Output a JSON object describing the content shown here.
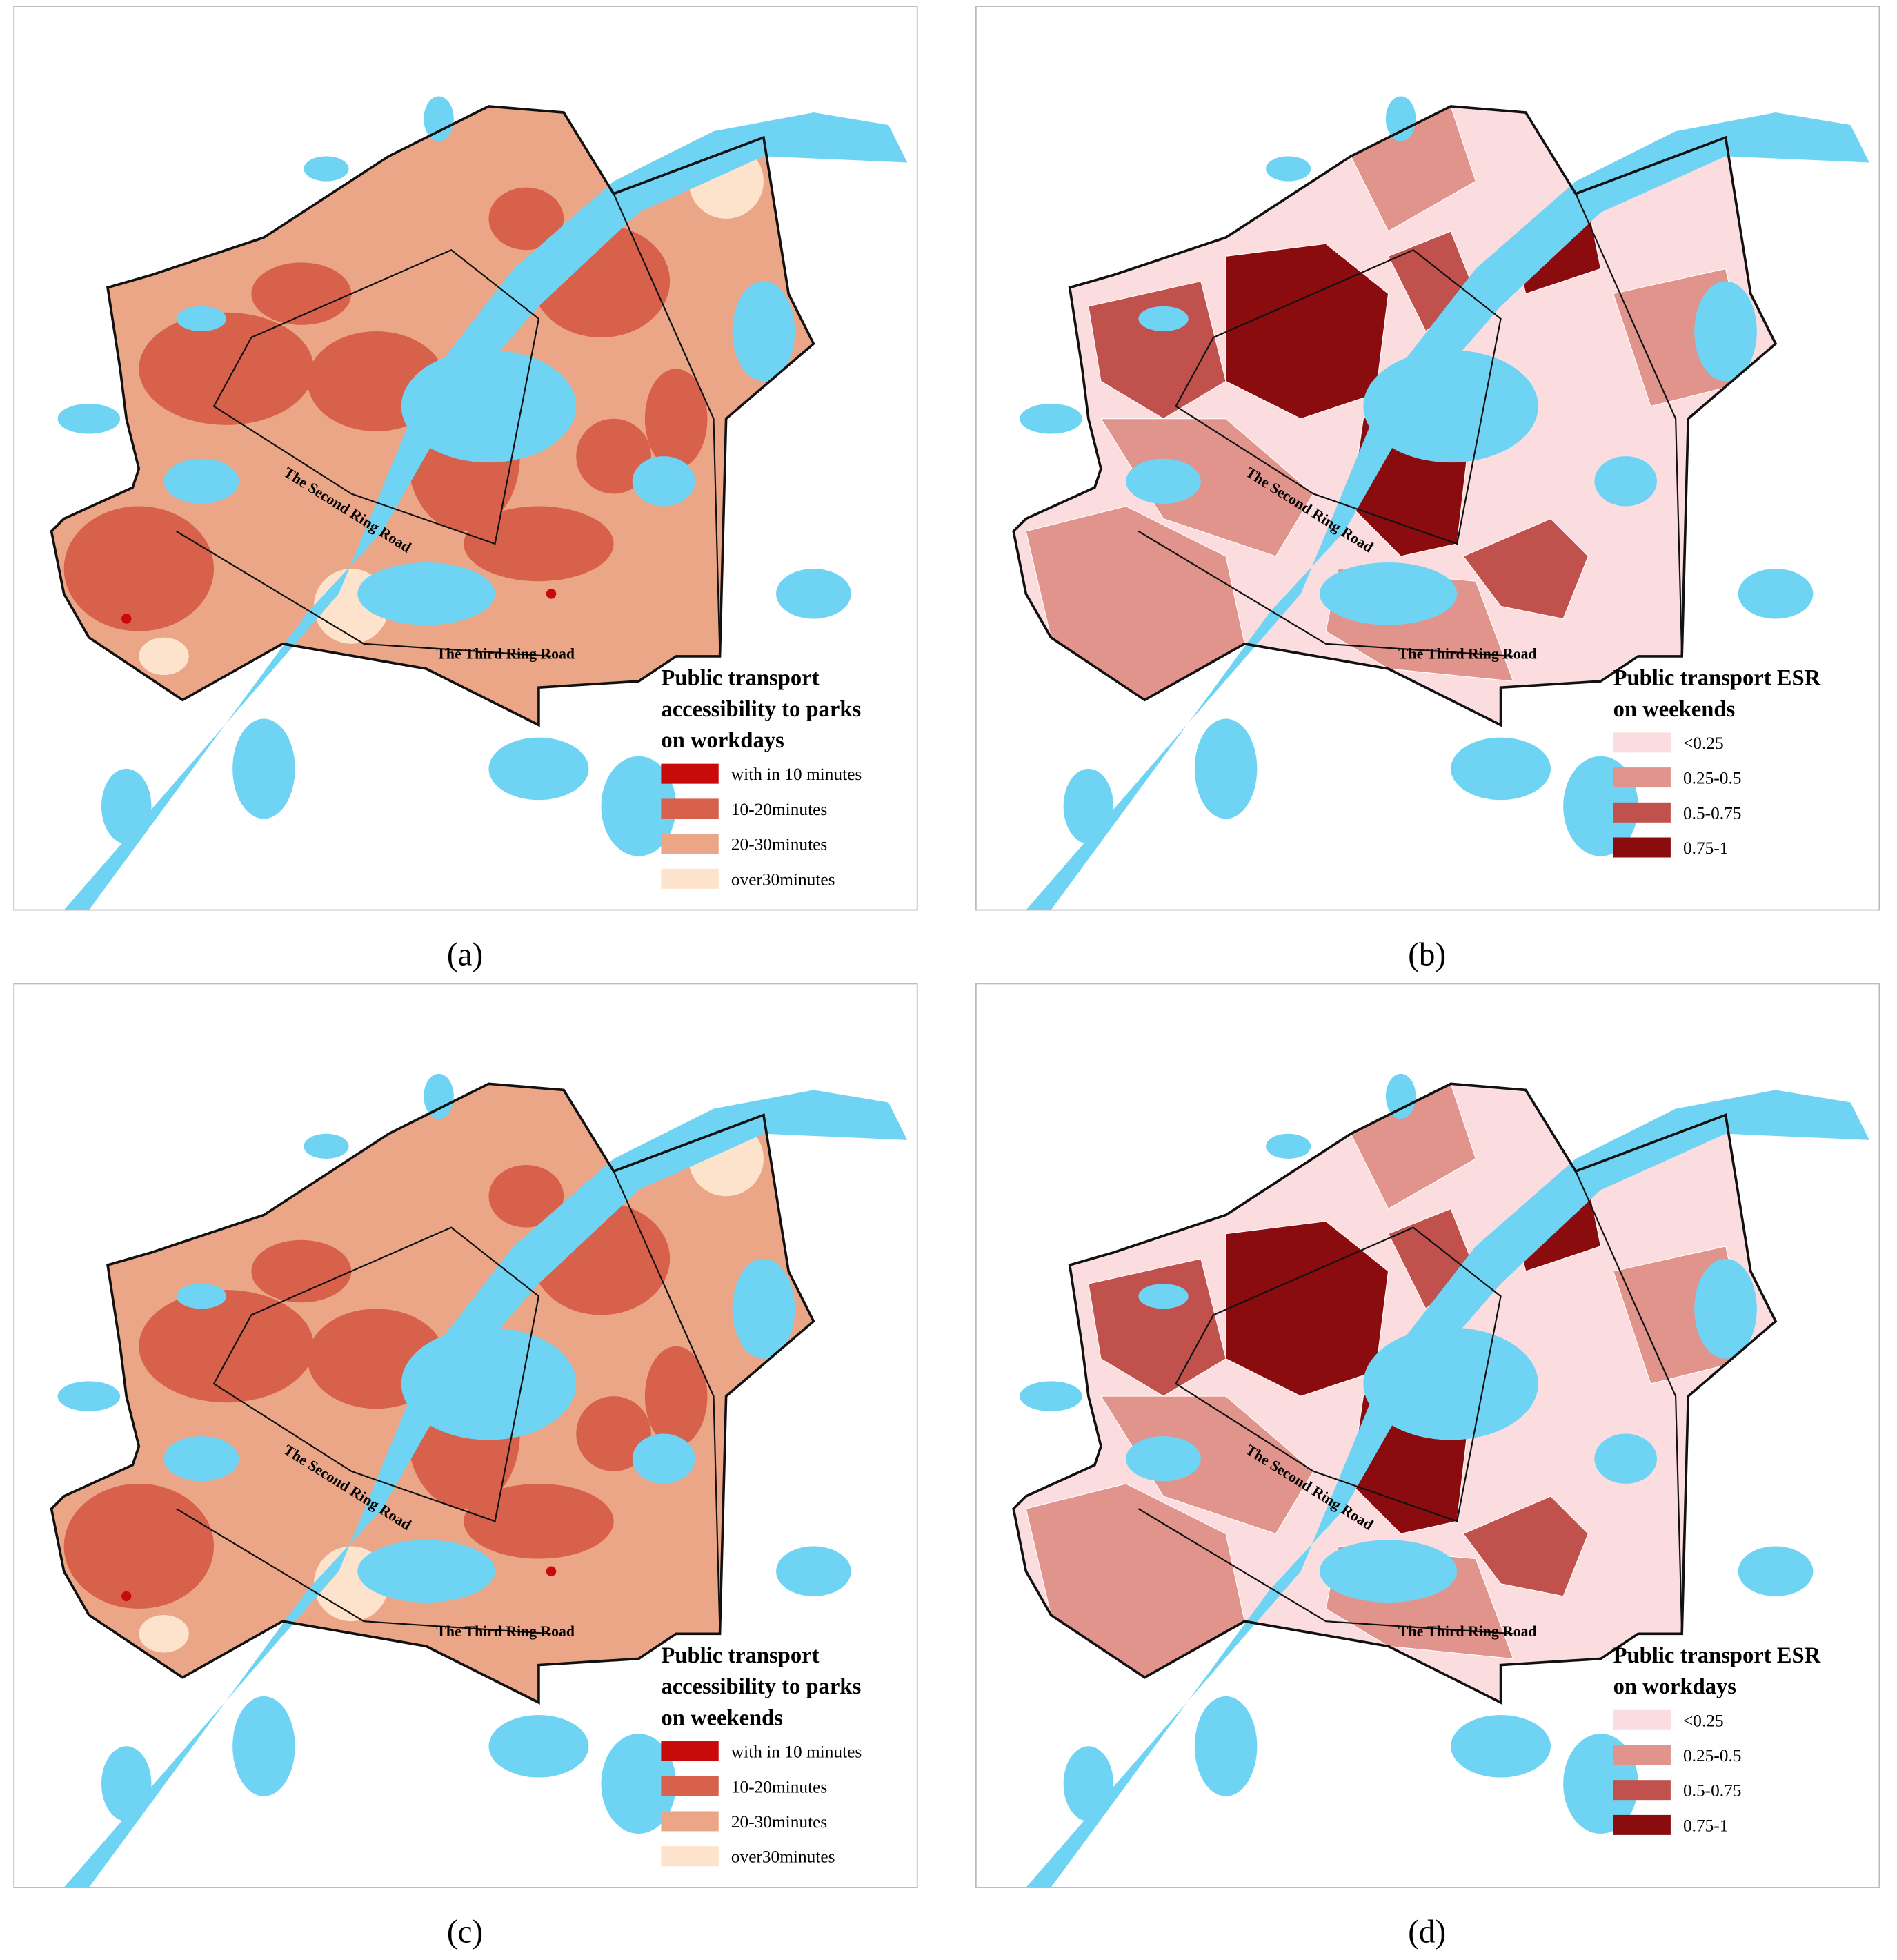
{
  "panels": [
    {
      "caption": "(a)",
      "kind": "access",
      "ring2": "The Second Ring Road",
      "ring3": "The Third Ring Road",
      "legend_title": [
        "Public transport",
        "accessibility to parks",
        "on workdays"
      ],
      "legend": [
        {
          "label": "with in 10 minutes",
          "color": "#c80a0a"
        },
        {
          "label": "10-20minutes",
          "color": "#d8614b"
        },
        {
          "label": "20-30minutes",
          "color": "#eba688"
        },
        {
          "label": "over30minutes",
          "color": "#fde3cc"
        }
      ]
    },
    {
      "caption": "(b)",
      "kind": "esr",
      "ring2": "The Second Ring Road",
      "ring3": "The Third Ring Road",
      "legend_title": [
        "Public transport ESR",
        "on weekends"
      ],
      "legend": [
        {
          "label": "<0.25",
          "color": "#fbdcdf"
        },
        {
          "label": "0.25-0.5",
          "color": "#e0948c"
        },
        {
          "label": "0.5-0.75",
          "color": "#c0514c"
        },
        {
          "label": "0.75-1",
          "color": "#8a0c0e"
        }
      ]
    },
    {
      "caption": "(c)",
      "kind": "access",
      "ring2": "The Second Ring Road",
      "ring3": "The Third Ring Road",
      "legend_title": [
        "Public transport",
        "accessibility to parks",
        "on weekends"
      ],
      "legend": [
        {
          "label": "with in 10 minutes",
          "color": "#c80a0a"
        },
        {
          "label": "10-20minutes",
          "color": "#d8614b"
        },
        {
          "label": "20-30minutes",
          "color": "#eba688"
        },
        {
          "label": "over30minutes",
          "color": "#fde3cc"
        }
      ]
    },
    {
      "caption": "(d)",
      "kind": "esr",
      "ring2": "The Second Ring Road",
      "ring3": "The Third Ring Road",
      "legend_title": [
        "Public transport ESR",
        "on workdays"
      ],
      "legend": [
        {
          "label": "<0.25",
          "color": "#fbdcdf"
        },
        {
          "label": "0.25-0.5",
          "color": "#e0948c"
        },
        {
          "label": "0.5-0.75",
          "color": "#c0514c"
        },
        {
          "label": "0.75-1",
          "color": "#8a0c0e"
        }
      ]
    }
  ]
}
